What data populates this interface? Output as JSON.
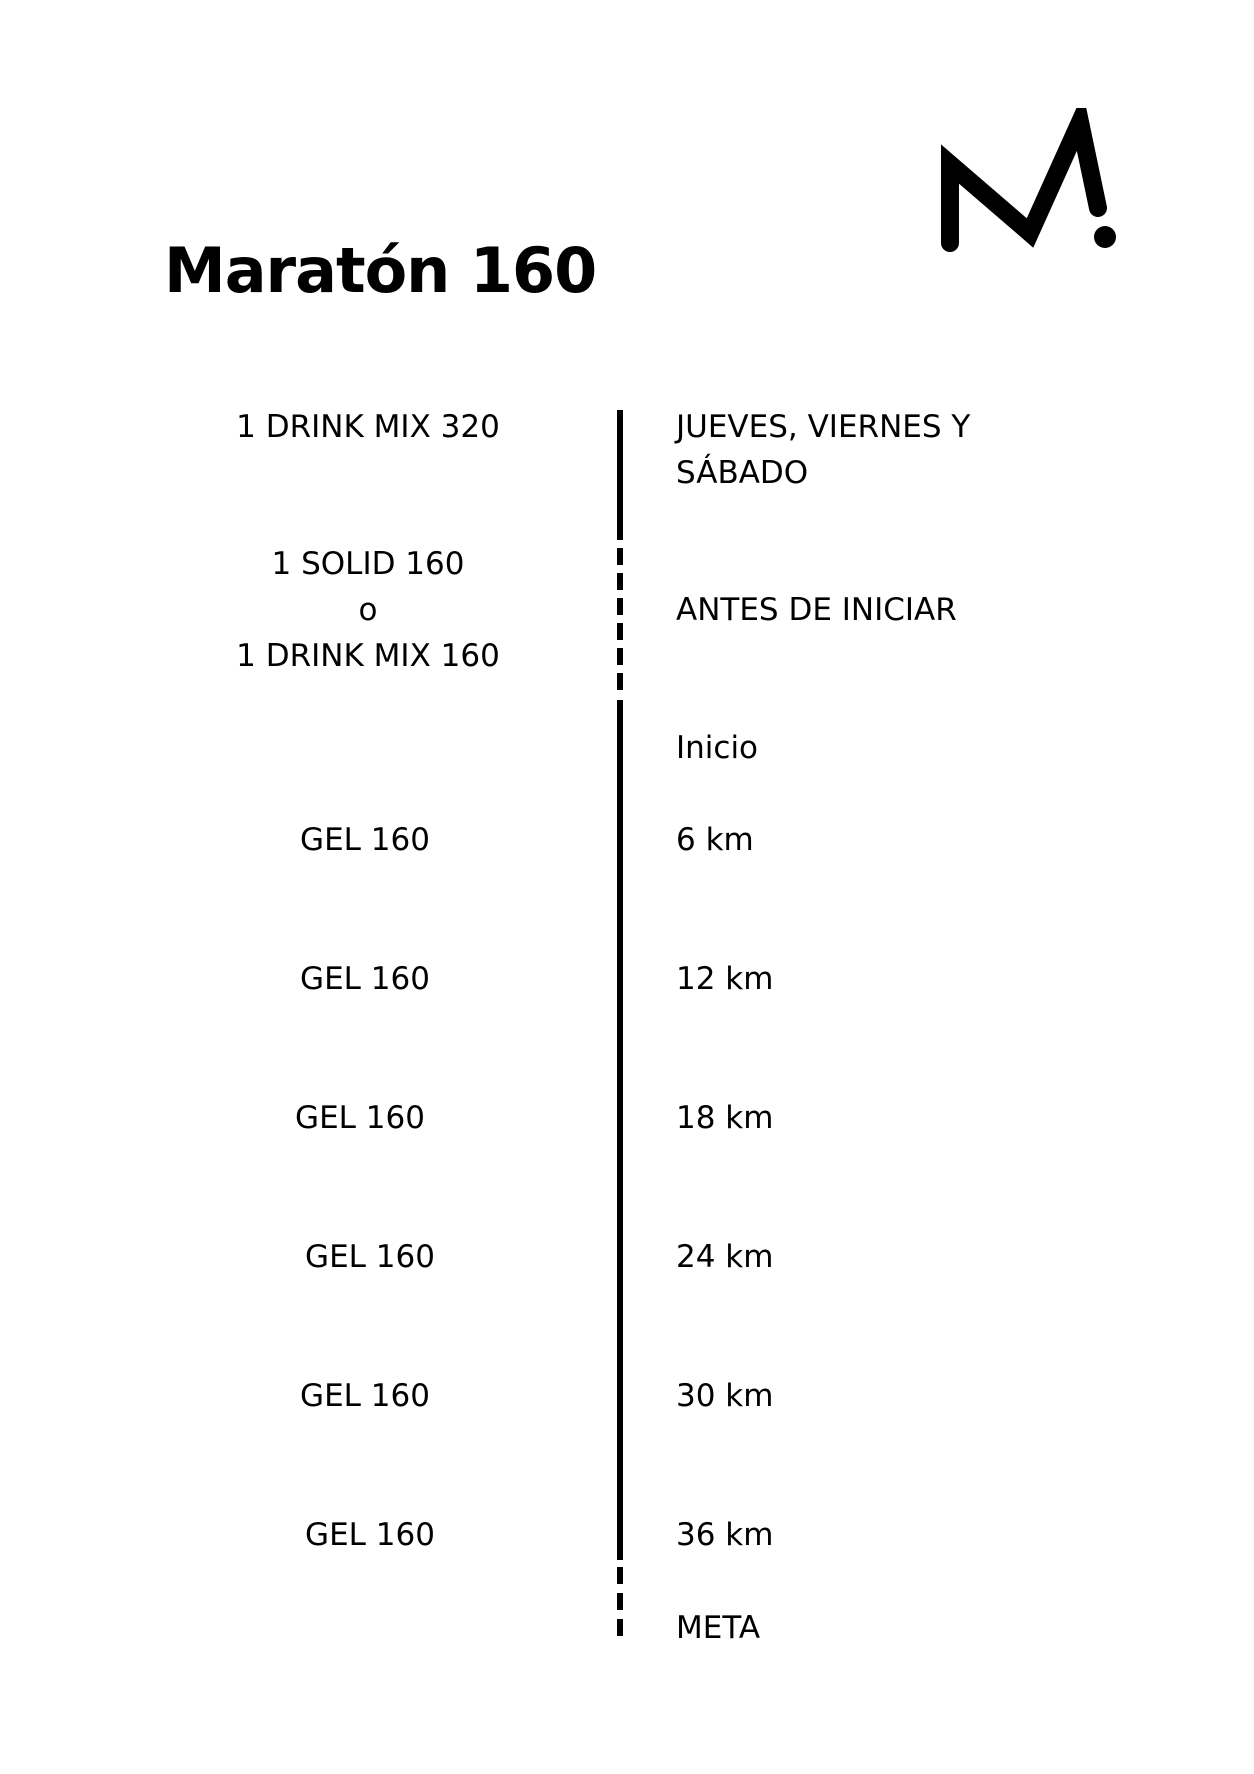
{
  "document": {
    "title": "Maratón 160",
    "logo_icon": "m-mark-logo-icon"
  },
  "timeline": {
    "rows": [
      {
        "left": "1 DRINK MIX  320",
        "right": "JUEVES, VIERNES Y\nSÁBADO"
      },
      {
        "left": "1 SOLID 160\no\n1 DRINK MIX 160",
        "right": "ANTES DE INICIAR"
      },
      {
        "left": "",
        "right": "Inicio"
      },
      {
        "left": "GEL 160",
        "right": "6 km"
      },
      {
        "left": "GEL 160",
        "right": "12 km"
      },
      {
        "left": "GEL 160",
        "right": "18 km"
      },
      {
        "left": "GEL 160",
        "right": "24 km"
      },
      {
        "left": "GEL 160",
        "right": "30 km"
      },
      {
        "left": "GEL 160",
        "right": "36 km"
      },
      {
        "left": "",
        "right": "META"
      }
    ]
  }
}
